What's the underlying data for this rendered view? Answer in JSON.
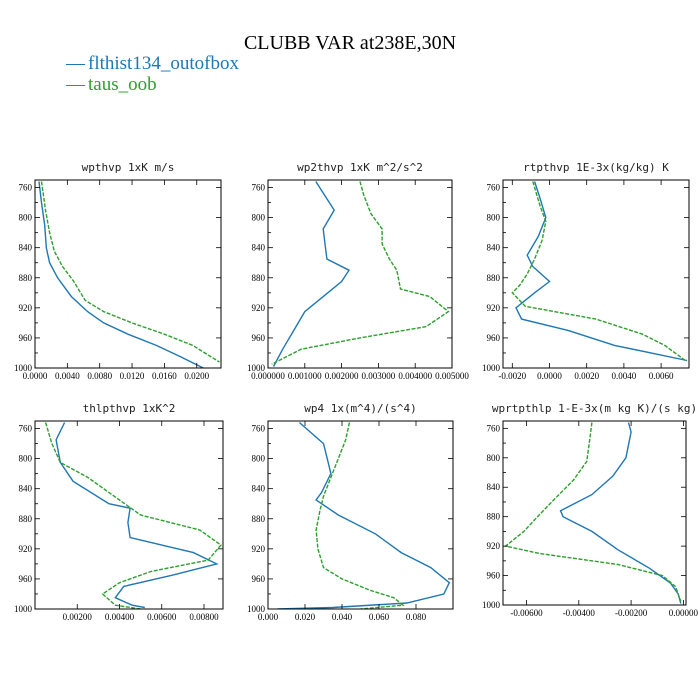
{
  "title": "CLUBB VAR at238E,30N",
  "colors": {
    "series1": "#1f77b4",
    "series2": "#2ca02c"
  },
  "legend": [
    {
      "symbol": "—",
      "label": "flthist134_outofbox",
      "color": "#1f77b4",
      "style": "solid"
    },
    {
      "symbol": "—",
      "label": "taus_oob",
      "color": "#2ca02c",
      "style": "dashed"
    }
  ],
  "chart_data": [
    {
      "type": "line",
      "title": "wpthvp  1xK m/s",
      "xlim": [
        0,
        0.023
      ],
      "ylim": [
        1000,
        750
      ],
      "xticks": [
        0.0,
        0.004,
        0.008,
        0.012,
        0.016,
        0.02
      ],
      "xtick_labels": [
        "0.0000",
        "0.0040",
        "0.0080",
        "0.0120",
        "0.0160",
        "0.0200"
      ],
      "yticks": [
        760,
        800,
        840,
        880,
        920,
        960,
        1000
      ],
      "ytick_labels": [
        "760",
        "800",
        "840",
        "880",
        "920",
        "960",
        "1000"
      ],
      "series": [
        {
          "name": "flthist134_outofbox",
          "x": [
            0.0005,
            0.0008,
            0.0012,
            0.0014,
            0.0018,
            0.0028,
            0.0045,
            0.0065,
            0.0085,
            0.0115,
            0.015,
            0.018,
            0.0208
          ],
          "y": [
            752,
            780,
            810,
            840,
            860,
            880,
            905,
            925,
            940,
            955,
            970,
            985,
            1000
          ]
        },
        {
          "name": "taus_oob",
          "x": [
            0.0008,
            0.0013,
            0.0018,
            0.0024,
            0.0034,
            0.0048,
            0.0062,
            0.0085,
            0.012,
            0.016,
            0.0195,
            0.0228
          ],
          "y": [
            752,
            790,
            820,
            845,
            865,
            885,
            910,
            925,
            940,
            955,
            970,
            992
          ]
        }
      ]
    },
    {
      "type": "line",
      "title": "wp2thvp  1xK m^2/s^2",
      "xlim": [
        0,
        0.005
      ],
      "ylim": [
        1000,
        750
      ],
      "xticks": [
        0.0,
        0.001,
        0.002,
        0.003,
        0.004,
        0.005
      ],
      "xtick_labels": [
        "0.000000",
        "0.001000",
        "0.002000",
        "0.003000",
        "0.004000",
        "0.005000"
      ],
      "yticks": [
        760,
        800,
        840,
        880,
        920,
        960,
        1000
      ],
      "ytick_labels": [
        "760",
        "800",
        "840",
        "880",
        "920",
        "960",
        "1000"
      ],
      "series": [
        {
          "name": "flthist134_outofbox",
          "x": [
            0.0013,
            0.0018,
            0.0015,
            0.00155,
            0.0016,
            0.0022,
            0.002,
            0.0015,
            0.001,
            0.0007,
            0.0004,
            0.00015
          ],
          "y": [
            752,
            790,
            815,
            835,
            855,
            870,
            885,
            905,
            925,
            950,
            975,
            998
          ]
        },
        {
          "name": "taus_oob",
          "x": [
            0.0025,
            0.0026,
            0.0028,
            0.0031,
            0.0031,
            0.0033,
            0.0035,
            0.0036,
            0.0044,
            0.0049,
            0.0043,
            0.0025,
            0.0009,
            0.0001
          ],
          "y": [
            752,
            770,
            795,
            815,
            835,
            855,
            870,
            895,
            905,
            925,
            945,
            960,
            975,
            995
          ]
        }
      ]
    },
    {
      "type": "line",
      "title": "rtpthvp  1E-3x(kg/kg) K",
      "xlim": [
        -0.0025,
        0.0075
      ],
      "ylim": [
        1000,
        750
      ],
      "xticks": [
        -0.002,
        0.0,
        0.002,
        0.004,
        0.006
      ],
      "xtick_labels": [
        "-0.0020",
        "0.0000",
        "0.0020",
        "0.0040",
        "0.0060"
      ],
      "yticks": [
        760,
        800,
        840,
        880,
        920,
        960,
        1000
      ],
      "ytick_labels": [
        "760",
        "800",
        "840",
        "880",
        "920",
        "960",
        "1000"
      ],
      "series": [
        {
          "name": "flthist134_outofbox",
          "x": [
            -0.0008,
            -0.0005,
            -0.0002,
            -0.0006,
            -0.0012,
            -0.0009,
            0.0,
            -0.0008,
            -0.0018,
            -0.0015,
            0.001,
            0.0035,
            0.0074
          ],
          "y": [
            752,
            775,
            800,
            825,
            850,
            865,
            885,
            900,
            920,
            935,
            950,
            970,
            990
          ]
        },
        {
          "name": "taus_oob",
          "x": [
            -0.0009,
            -0.0005,
            -0.0002,
            -0.0004,
            -0.0008,
            -0.0012,
            -0.0016,
            -0.002,
            -0.0013,
            0.0025,
            0.005,
            0.0062,
            0.0073
          ],
          "y": [
            752,
            785,
            805,
            830,
            855,
            875,
            890,
            900,
            918,
            935,
            955,
            970,
            990
          ]
        }
      ]
    },
    {
      "type": "line",
      "xlim": [
        0,
        0.0089
      ],
      "ylim": [
        1000,
        750
      ],
      "title": "thlpthvp  1xK^2",
      "xticks": [
        0.002,
        0.004,
        0.006,
        0.008
      ],
      "xtick_labels": [
        "0.00200",
        "0.00400",
        "0.00600",
        "0.00800"
      ],
      "yticks": [
        760,
        800,
        840,
        880,
        920,
        960,
        1000
      ],
      "ytick_labels": [
        "760",
        "800",
        "840",
        "880",
        "920",
        "960",
        "1000"
      ],
      "series": [
        {
          "name": "flthist134_outofbox",
          "x": [
            0.0014,
            0.001,
            0.0012,
            0.0018,
            0.0035,
            0.0045,
            0.0044,
            0.0045,
            0.0075,
            0.0086,
            0.0065,
            0.0042,
            0.0038,
            0.0046,
            0.0052
          ],
          "y": [
            752,
            775,
            805,
            830,
            860,
            866,
            885,
            905,
            925,
            940,
            955,
            970,
            985,
            995,
            998
          ]
        },
        {
          "name": "taus_oob",
          "x": [
            0.0005,
            0.0008,
            0.0012,
            0.0025,
            0.004,
            0.005,
            0.0078,
            0.0088,
            0.0082,
            0.0055,
            0.004,
            0.0032,
            0.0038,
            0.005
          ],
          "y": [
            752,
            780,
            805,
            825,
            855,
            875,
            895,
            915,
            935,
            950,
            965,
            980,
            995,
            1000
          ]
        }
      ]
    },
    {
      "type": "line",
      "title": "wp4  1x(m^4)/(s^4)",
      "xlim": [
        0,
        0.1
      ],
      "ylim": [
        1000,
        750
      ],
      "xticks": [
        0.0,
        0.02,
        0.04,
        0.06,
        0.08
      ],
      "xtick_labels": [
        "0.000",
        "0.020",
        "0.040",
        "0.060",
        "0.080"
      ],
      "yticks": [
        760,
        800,
        840,
        880,
        920,
        960,
        1000
      ],
      "ytick_labels": [
        "760",
        "800",
        "840",
        "880",
        "920",
        "960",
        "1000"
      ],
      "series": [
        {
          "name": "flthist134_outofbox",
          "x": [
            0.017,
            0.03,
            0.032,
            0.034,
            0.029,
            0.026,
            0.038,
            0.058,
            0.072,
            0.088,
            0.098,
            0.095,
            0.075,
            0.035,
            0.005
          ],
          "y": [
            752,
            780,
            800,
            820,
            845,
            855,
            875,
            900,
            925,
            945,
            965,
            980,
            992,
            998,
            1000
          ]
        },
        {
          "name": "taus_oob",
          "x": [
            0.044,
            0.042,
            0.038,
            0.034,
            0.03,
            0.028,
            0.026,
            0.027,
            0.03,
            0.04,
            0.055,
            0.068,
            0.073,
            0.05
          ],
          "y": [
            752,
            775,
            800,
            825,
            850,
            870,
            895,
            920,
            945,
            960,
            975,
            985,
            995,
            1000
          ]
        }
      ]
    },
    {
      "type": "line",
      "title": "wprtpthlp  1-E-3x(m kg K)/(s kg)",
      "xlim": [
        -0.0069,
        0.0001
      ],
      "ylim": [
        1000,
        750
      ],
      "xticks": [
        -0.006,
        -0.004,
        -0.002,
        0.0
      ],
      "xtick_labels": [
        "-0.00600",
        "-0.00400",
        "-0.00200",
        "0.00000"
      ],
      "yticks": [
        760,
        800,
        840,
        880,
        920,
        960,
        1000
      ],
      "ytick_labels": [
        "760",
        "800",
        "840",
        "880",
        "920",
        "960",
        "1000"
      ],
      "series": [
        {
          "name": "flthist134_outofbox",
          "x": [
            -0.0021,
            -0.002,
            -0.0022,
            -0.0027,
            -0.0035,
            -0.0047,
            -0.0046,
            -0.0035,
            -0.0025,
            -0.0013,
            -0.0005,
            -0.0002,
            -0.0001
          ],
          "y": [
            752,
            765,
            800,
            825,
            850,
            872,
            880,
            900,
            925,
            950,
            970,
            985,
            998
          ]
        },
        {
          "name": "taus_oob",
          "x": [
            -0.0035,
            -0.0036,
            -0.0037,
            -0.0042,
            -0.0049,
            -0.0055,
            -0.0061,
            -0.0068,
            -0.0055,
            -0.0025,
            -0.0008,
            -0.0003,
            -0.0001
          ],
          "y": [
            752,
            780,
            805,
            830,
            855,
            877,
            900,
            920,
            930,
            945,
            960,
            975,
            995
          ]
        }
      ]
    }
  ]
}
